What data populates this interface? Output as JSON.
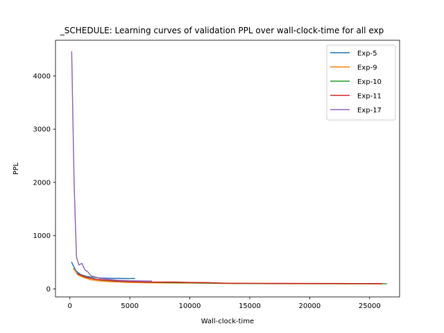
{
  "chart_data": {
    "type": "line",
    "title": "_SCHEDULE: Learning curves of validation PPL over wall-clock-time for all exp",
    "xlabel": "Wall-clock-time",
    "ylabel": "PPL",
    "xlim": [
      -1200,
      27500
    ],
    "ylim": [
      -150,
      4670
    ],
    "xticks": [
      0,
      5000,
      10000,
      15000,
      20000,
      25000
    ],
    "yticks": [
      0,
      1000,
      2000,
      3000,
      4000
    ],
    "grid": false,
    "legend_position": "top-right",
    "series": [
      {
        "name": "Exp-5",
        "color": "#1f77b4",
        "x": [
          150,
          500,
          900,
          1300,
          1700,
          2100,
          2600,
          3200,
          4000,
          4800,
          5400
        ],
        "y": [
          500,
          340,
          270,
          240,
          225,
          215,
          205,
          200,
          198,
          196,
          195
        ]
      },
      {
        "name": "Exp-9",
        "color": "#ff7f0e",
        "x": [
          300,
          700,
          1200,
          1800,
          2500,
          3500,
          5000,
          6500,
          8000,
          10000,
          12000,
          14000,
          16000,
          18000,
          20000,
          22000,
          24000,
          26000
        ],
        "y": [
          380,
          260,
          210,
          170,
          150,
          135,
          120,
          115,
          112,
          110,
          105,
          100,
          100,
          98,
          98,
          97,
          97,
          96
        ]
      },
      {
        "name": "Exp-10",
        "color": "#2ca02c",
        "x": [
          600,
          1500,
          2500,
          4000,
          6000,
          8000,
          10000,
          12500,
          15000,
          17500,
          20000,
          22500,
          25000,
          26400
        ],
        "y": [
          290,
          210,
          170,
          145,
          130,
          120,
          115,
          105,
          100,
          100,
          100,
          98,
          97,
          97
        ]
      },
      {
        "name": "Exp-11",
        "color": "#d62728",
        "x": [
          600,
          1200,
          2000,
          3000,
          4000,
          5500,
          7000,
          8500,
          10000,
          11500,
          13000,
          15000,
          17500,
          20000,
          22500,
          25000,
          26000
        ],
        "y": [
          290,
          230,
          185,
          165,
          150,
          135,
          128,
          130,
          122,
          118,
          108,
          105,
          104,
          103,
          102,
          101,
          100
        ]
      },
      {
        "name": "Exp-17",
        "color": "#9467bd",
        "x": [
          150,
          350,
          550,
          750,
          1000,
          1250,
          1500,
          1750,
          2000,
          2500,
          3000,
          4000,
          5000,
          6000,
          6800
        ],
        "y": [
          4450,
          2000,
          600,
          450,
          480,
          360,
          320,
          250,
          230,
          200,
          185,
          165,
          155,
          150,
          148
        ]
      }
    ]
  }
}
